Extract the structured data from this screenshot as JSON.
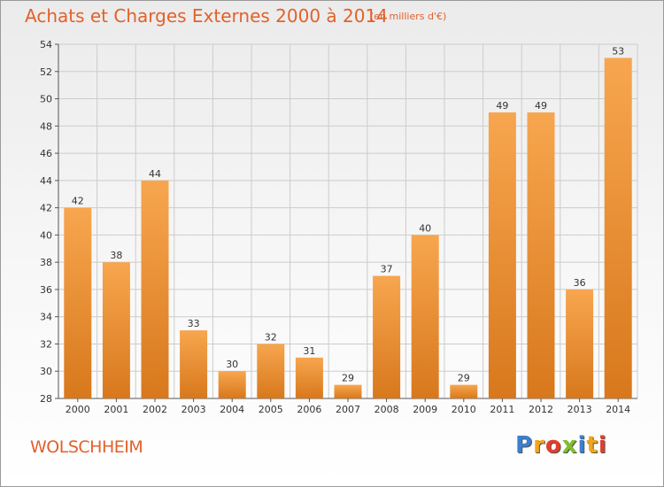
{
  "header": {
    "title": "Achats et Charges Externes 2000 à 2014",
    "subtitle": "(en milliers d'€)"
  },
  "footer": {
    "commune": "WOLSCHHEIM",
    "logo_letters": [
      "P",
      "r",
      "o",
      "x",
      "i",
      "t",
      "i"
    ],
    "logo_colors": [
      "#3b7fd0",
      "#f2a51a",
      "#e23e2b",
      "#7fbf2c",
      "#3b7fd0",
      "#f2a51a",
      "#e23e2b"
    ]
  },
  "colors": {
    "title": "#e2612a",
    "bar_top": "#f7a64f",
    "bar_bottom": "#d8781c",
    "grid": "#cccccc"
  },
  "chart_data": {
    "type": "bar",
    "title": "Achats et Charges Externes 2000 à 2014",
    "subtitle": "(en milliers d'€)",
    "categories": [
      "2000",
      "2001",
      "2002",
      "2003",
      "2004",
      "2005",
      "2006",
      "2007",
      "2008",
      "2009",
      "2010",
      "2011",
      "2012",
      "2013",
      "2014"
    ],
    "values": [
      42,
      38,
      44,
      33,
      30,
      32,
      31,
      29,
      37,
      40,
      29,
      49,
      49,
      36,
      53
    ],
    "ylim": [
      28,
      54
    ],
    "yticks": [
      28,
      30,
      32,
      34,
      36,
      38,
      40,
      42,
      44,
      46,
      48,
      50,
      52,
      54
    ],
    "grid": true,
    "data_labels": true
  }
}
